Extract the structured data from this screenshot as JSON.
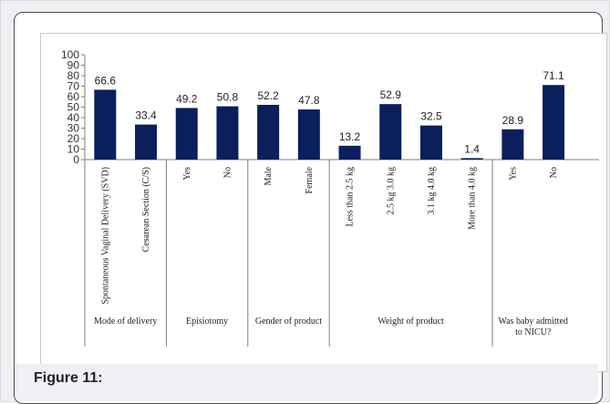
{
  "figure": {
    "caption": "Figure 11:"
  },
  "chart_data": {
    "type": "bar",
    "title": "",
    "xlabel": "",
    "ylabel": "",
    "ylim": [
      0,
      100
    ],
    "yticks": [
      0,
      10,
      20,
      30,
      40,
      50,
      60,
      70,
      80,
      90,
      100
    ],
    "bar_color": "#0b1f5c",
    "categories": [
      "Spontaneous Vaginal Delivery (SVD)",
      "Cesarean Section (C/S)",
      "Yes",
      "No",
      "Male",
      "Female",
      "Less than 2.5 kg",
      "2.5 kg 3.0 kg",
      "3.1 kg 4.0 kg",
      "More than 4.0 kg",
      "Yes",
      "No"
    ],
    "values": [
      66.6,
      33.4,
      49.2,
      50.8,
      52.2,
      47.8,
      13.2,
      52.9,
      32.5,
      1.4,
      28.9,
      71.1
    ],
    "value_labels": [
      "66.6",
      "33.4",
      "49.2",
      "50.8",
      "52.2",
      "47.8",
      "13.2",
      "52.9",
      "32.5",
      "1.4",
      "28.9",
      "71.1"
    ],
    "groups": [
      {
        "label": "Mode of delivery",
        "count": 2
      },
      {
        "label": "Episiotomy",
        "count": 2
      },
      {
        "label": "Gender of product",
        "count": 2
      },
      {
        "label": "Weight of product",
        "count": 4
      },
      {
        "label": "Was baby admitted to NICU?",
        "count": 2
      }
    ]
  }
}
